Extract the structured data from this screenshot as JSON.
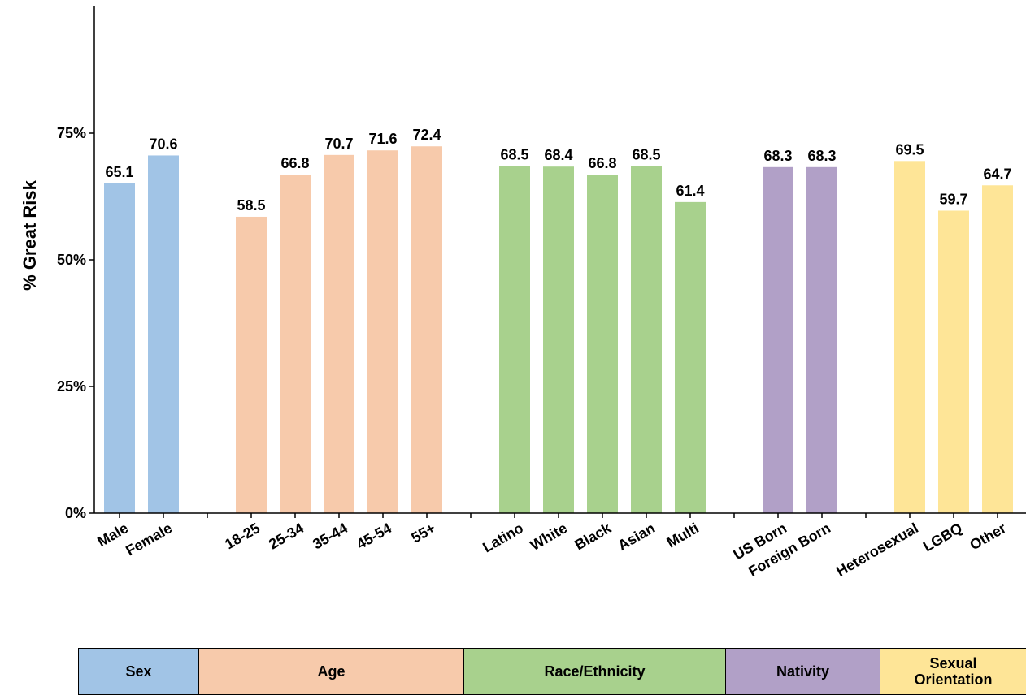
{
  "chart_data": {
    "type": "bar",
    "ylabel": "% Great Risk",
    "ylim": [
      0,
      100
    ],
    "yticks": [
      {
        "value": 0,
        "label": "0%"
      },
      {
        "value": 25,
        "label": "25%"
      },
      {
        "value": 50,
        "label": "50%"
      },
      {
        "value": 75,
        "label": "75%"
      }
    ],
    "groups": [
      {
        "name": "Sex",
        "color": "#a1c4e6",
        "categories": [
          "Male",
          "Female"
        ],
        "values": [
          65.1,
          70.6
        ]
      },
      {
        "name": "Age",
        "color": "#f7caab",
        "categories": [
          "18-25",
          "25-34",
          "35-44",
          "45-54",
          "55+"
        ],
        "values": [
          58.5,
          66.8,
          70.7,
          71.6,
          72.4
        ]
      },
      {
        "name": "Race/Ethnicity",
        "color": "#a8d18d",
        "categories": [
          "Latino",
          "White",
          "Black",
          "Asian",
          "Multi"
        ],
        "values": [
          68.5,
          68.4,
          66.8,
          68.5,
          61.4
        ]
      },
      {
        "name": "Nativity",
        "color": "#b1a0c7",
        "categories": [
          "US Born",
          "Foreign Born"
        ],
        "values": [
          68.3,
          68.3
        ]
      },
      {
        "name": "Sexual Orientation",
        "color": "#fee597",
        "categories": [
          "Heterosexual",
          "LGBQ",
          "Other"
        ],
        "values": [
          69.5,
          59.7,
          64.7
        ]
      }
    ],
    "grid": false,
    "legend": "table below chart"
  },
  "legend_table": [
    {
      "label": "Sex",
      "color": "#a1c4e6"
    },
    {
      "label": "Age",
      "color": "#f7caab"
    },
    {
      "label": "Race/Ethnicity",
      "color": "#a8d18d"
    },
    {
      "label": "Nativity",
      "color": "#b1a0c7"
    },
    {
      "label": "Sexual Orientation",
      "color": "#fee597"
    }
  ]
}
